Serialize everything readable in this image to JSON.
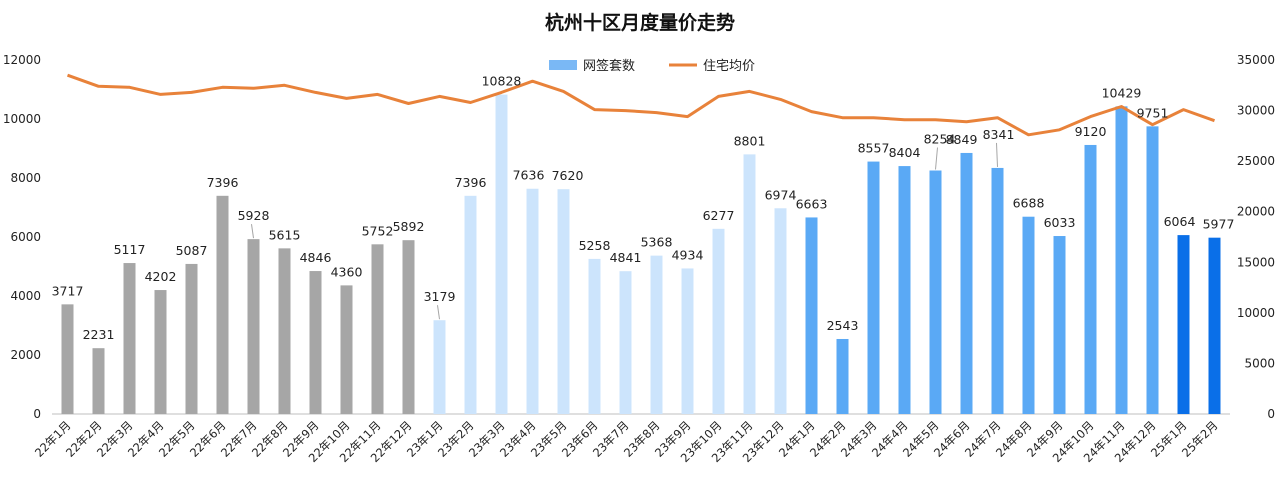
{
  "chart_data": {
    "type": "bar",
    "title": "杭州十区月度量价走势",
    "categories": [
      "22年1月",
      "22年2月",
      "22年3月",
      "22年4月",
      "22年5月",
      "22年6月",
      "22年7月",
      "22年8月",
      "22年9月",
      "22年10月",
      "22年11月",
      "22年12月",
      "23年1月",
      "23年2月",
      "23年3月",
      "23年4月",
      "23年5月",
      "23年6月",
      "23年7月",
      "23年8月",
      "23年9月",
      "23年10月",
      "23年11月",
      "23年12月",
      "24年1月",
      "24年2月",
      "24年3月",
      "24年4月",
      "24年5月",
      "24年6月",
      "24年7月",
      "24年8月",
      "24年9月",
      "24年10月",
      "24年11月",
      "24年12月",
      "25年1月",
      "25年2月"
    ],
    "series": [
      {
        "name": "网签套数",
        "type": "bar",
        "axis": "left",
        "color": "#5aa9f5",
        "values": [
          3717,
          2231,
          5117,
          4202,
          5087,
          7396,
          5928,
          5615,
          4846,
          4360,
          5752,
          5892,
          3179,
          7396,
          10828,
          7636,
          7620,
          5258,
          4841,
          5368,
          4934,
          6277,
          8801,
          6974,
          6663,
          2543,
          8557,
          8404,
          8254,
          8849,
          8341,
          6688,
          6033,
          9120,
          10429,
          9751,
          6064,
          5977
        ],
        "bar_colors": [
          "#a6a6a6",
          "#a6a6a6",
          "#a6a6a6",
          "#a6a6a6",
          "#a6a6a6",
          "#a6a6a6",
          "#a6a6a6",
          "#a6a6a6",
          "#a6a6a6",
          "#a6a6a6",
          "#a6a6a6",
          "#a6a6a6",
          "#cce4fc",
          "#cce4fc",
          "#cce4fc",
          "#cce4fc",
          "#cce4fc",
          "#cce4fc",
          "#cce4fc",
          "#cce4fc",
          "#cce4fc",
          "#cce4fc",
          "#cce4fc",
          "#cce4fc",
          "#5aa9f5",
          "#5aa9f5",
          "#5aa9f5",
          "#5aa9f5",
          "#5aa9f5",
          "#5aa9f5",
          "#5aa9f5",
          "#5aa9f5",
          "#5aa9f5",
          "#5aa9f5",
          "#5aa9f5",
          "#5aa9f5",
          "#0a6fe8",
          "#0a6fe8"
        ]
      },
      {
        "name": "住宅均价",
        "type": "line",
        "axis": "right",
        "color": "#e8823a",
        "values": [
          33500,
          32400,
          32300,
          31600,
          31800,
          32300,
          32200,
          32500,
          31800,
          31200,
          31600,
          30700,
          31400,
          30800,
          31800,
          32900,
          31900,
          30100,
          30000,
          29800,
          29400,
          31400,
          31900,
          31100,
          29900,
          29300,
          29300,
          29100,
          29100,
          28900,
          29300,
          27600,
          28100,
          29400,
          30400,
          28600,
          30100,
          29000
        ]
      }
    ],
    "y_left": {
      "min": 0,
      "max": 12000,
      "ticks": [
        0,
        2000,
        4000,
        6000,
        8000,
        10000,
        12000
      ]
    },
    "y_right": {
      "min": 0,
      "max": 35000,
      "ticks": [
        0,
        5000,
        10000,
        15000,
        20000,
        25000,
        30000,
        35000
      ]
    },
    "grid": false,
    "legend": "top-center"
  }
}
